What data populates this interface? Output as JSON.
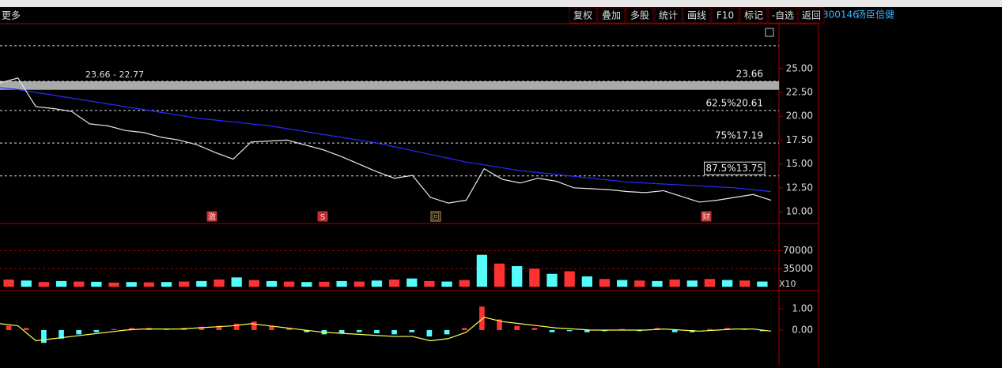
{
  "toolbar": {
    "left": "更多",
    "buttons": [
      "复权",
      "叠加",
      "多股",
      "统计",
      "画线",
      "F10",
      "标记",
      "-自选",
      "返回"
    ]
  },
  "stock": {
    "code": "300146",
    "name": "汤臣倍健"
  },
  "price_panel": {
    "range_label": "23.66 - 22.77",
    "band": [
      23.66,
      22.77
    ],
    "levels": [
      {
        "value": 23.66,
        "label": "23.66"
      },
      {
        "value": 20.61,
        "label": "62.5%20.61"
      },
      {
        "value": 17.19,
        "label": "75%17.19"
      },
      {
        "value": 13.75,
        "label": "87.5%13.75"
      }
    ],
    "grid_levels": [
      27.39
    ],
    "ylim": [
      8.76,
      29.7
    ],
    "yticks": [
      {
        "value": 25,
        "label": "25.00"
      },
      {
        "value": 22.5,
        "label": "22.50"
      },
      {
        "value": 20,
        "label": "20.00"
      },
      {
        "value": 17.5,
        "label": "17.50"
      },
      {
        "value": 15,
        "label": "15.00"
      },
      {
        "value": 12.5,
        "label": "12.50"
      },
      {
        "value": 10,
        "label": "10.00"
      }
    ],
    "close": [
      23.5,
      24,
      21,
      20.8,
      20.5,
      19.2,
      19,
      18.5,
      18.3,
      17.8,
      17.5,
      17,
      16.2,
      15.5,
      17.3,
      17.4,
      17.5,
      17,
      16.5,
      15.8,
      15,
      14.2,
      13.5,
      13.8,
      11.5,
      10.9,
      11.2,
      14.5,
      13.4,
      13,
      13.5,
      13.2,
      12.5,
      12.4,
      12.3,
      12.1,
      12,
      12.2,
      11.6,
      11,
      11.2,
      11.5,
      11.8,
      11.2
    ],
    "ma": [
      23,
      22.8,
      22.5,
      22.2,
      21.9,
      21.6,
      21.3,
      21,
      20.7,
      20.4,
      20.1,
      19.8,
      19.6,
      19.4,
      19.2,
      19,
      18.7,
      18.4,
      18.1,
      17.8,
      17.5,
      17.2,
      16.8,
      16.4,
      16,
      15.6,
      15.2,
      14.9,
      14.6,
      14.3,
      14.1,
      13.9,
      13.7,
      13.5,
      13.3,
      13.1,
      13,
      12.9,
      12.8,
      12.7,
      12.6,
      12.5,
      12.3,
      12.1
    ],
    "markers": [
      "激",
      "S",
      "回",
      "财"
    ]
  },
  "volume_panel": {
    "unit_label": "X10",
    "ylim": [
      -7600,
      123000
    ],
    "yticks": [
      {
        "value": 70000,
        "label": "70000"
      },
      {
        "value": 35000,
        "label": "35000"
      }
    ],
    "values": [
      14000,
      12000,
      9000,
      11000,
      10000,
      9500,
      8000,
      9000,
      8500,
      9000,
      10000,
      11000,
      14000,
      18000,
      13000,
      11000,
      10000,
      9000,
      9500,
      11000,
      10000,
      12000,
      14000,
      16000,
      11000,
      10000,
      13000,
      62000,
      45000,
      40000,
      35000,
      25000,
      30000,
      20000,
      15000,
      13000,
      12000,
      11000,
      14000,
      12000,
      15000,
      13000,
      12000,
      10000
    ]
  },
  "macd_panel": {
    "ylim": [
      -1.63,
      1.85
    ],
    "yticks": [
      {
        "value": 1,
        "label": "1.00"
      },
      {
        "value": 0,
        "label": "0.00"
      }
    ],
    "hist": [
      0.2,
      0.1,
      -0.6,
      -0.4,
      -0.2,
      -0.1,
      0.05,
      0.1,
      0.1,
      0.05,
      0.1,
      0.15,
      0.2,
      0.3,
      0.4,
      0.2,
      0.1,
      -0.1,
      -0.2,
      -0.15,
      -0.1,
      -0.15,
      -0.2,
      -0.1,
      -0.3,
      -0.2,
      0.1,
      1.1,
      0.5,
      0.2,
      0.1,
      -0.1,
      -0.05,
      -0.1,
      -0.05,
      0.05,
      -0.05,
      0.1,
      -0.1,
      -0.1,
      0.05,
      0.1,
      0.05,
      -0.05
    ],
    "dif": [
      0.3,
      0.2,
      -0.5,
      -0.4,
      -0.3,
      -0.2,
      -0.1,
      0,
      0.05,
      0.05,
      0.05,
      0.1,
      0.15,
      0.2,
      0.3,
      0.2,
      0.1,
      0,
      -0.1,
      -0.15,
      -0.2,
      -0.25,
      -0.3,
      -0.3,
      -0.5,
      -0.4,
      -0.1,
      0.6,
      0.4,
      0.3,
      0.2,
      0.1,
      0.05,
      0,
      0,
      0,
      0,
      0.05,
      0,
      -0.05,
      0,
      0.05,
      0.05,
      -0.05
    ]
  }
}
